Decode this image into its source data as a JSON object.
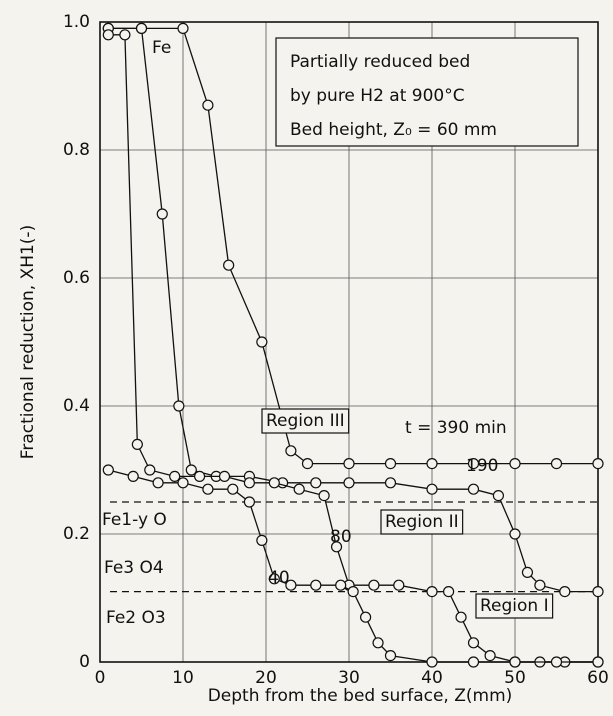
{
  "chart_data": {
    "type": "line",
    "x_label": "Depth from the bed surface,  Z(mm)",
    "y_label": "Fractional reduction,  XH1(-)",
    "xlim": [
      0,
      60
    ],
    "xticks": [
      0,
      10,
      20,
      30,
      40,
      50,
      60
    ],
    "ylim": [
      0,
      1
    ],
    "yticks": [
      0,
      0.2,
      0.4,
      0.6,
      0.8,
      {
        "value": 1,
        "label": "1.0"
      }
    ],
    "grid": true,
    "annotation_box": [
      "Partially reduced bed",
      "by pure H2  at 900°C",
      "Bed  height, Z₀ = 60 mm"
    ],
    "annotations": [
      "Fe",
      "Fe1-y O",
      "Fe3 O4",
      "Fe2 O3",
      "Region III",
      "Region II",
      "Region I"
    ],
    "reference_lines": [
      0.25,
      0.11
    ],
    "series": [
      {
        "name": "t = 390 min",
        "color": "#111111",
        "x": [
          1,
          5,
          10,
          13,
          15.5,
          19.5,
          23,
          25,
          30,
          35,
          40,
          45,
          50,
          55,
          60
        ],
        "values": [
          0.99,
          0.99,
          0.99,
          0.87,
          0.62,
          0.5,
          0.33,
          0.31,
          0.31,
          0.31,
          0.31,
          0.31,
          0.31,
          0.31,
          0.31
        ]
      },
      {
        "name": "190",
        "color": "#111111",
        "x": [
          1,
          5,
          7.5,
          9.5,
          11,
          14,
          18,
          22,
          26,
          30,
          35,
          40,
          45,
          48,
          50,
          51.5,
          53,
          56,
          60
        ],
        "values": [
          0.99,
          0.99,
          0.7,
          0.4,
          0.3,
          0.29,
          0.29,
          0.28,
          0.28,
          0.28,
          0.28,
          0.27,
          0.27,
          0.26,
          0.2,
          0.14,
          0.12,
          0.11,
          0.11
        ]
      },
      {
        "name": "80",
        "color": "#111111",
        "x": [
          1,
          3,
          4.5,
          6,
          9,
          12,
          15,
          18,
          21,
          24,
          27,
          28.5,
          30,
          33,
          36,
          40,
          42,
          43.5,
          45,
          47,
          50,
          53,
          56,
          60
        ],
        "values": [
          0.98,
          0.98,
          0.34,
          0.3,
          0.29,
          0.29,
          0.29,
          0.28,
          0.28,
          0.27,
          0.26,
          0.18,
          0.12,
          0.12,
          0.12,
          0.11,
          0.11,
          0.07,
          0.03,
          0.01,
          0,
          0,
          0,
          0
        ]
      },
      {
        "name": "40",
        "color": "#111111",
        "x": [
          1,
          4,
          7,
          10,
          13,
          16,
          18,
          19.5,
          21,
          23,
          26,
          29,
          30.5,
          32,
          33.5,
          35,
          40,
          45,
          50,
          55,
          60
        ],
        "values": [
          0.3,
          0.29,
          0.28,
          0.28,
          0.27,
          0.27,
          0.25,
          0.19,
          0.13,
          0.12,
          0.12,
          0.12,
          0.11,
          0.07,
          0.03,
          0.01,
          0,
          0,
          0,
          0,
          0
        ]
      }
    ]
  }
}
